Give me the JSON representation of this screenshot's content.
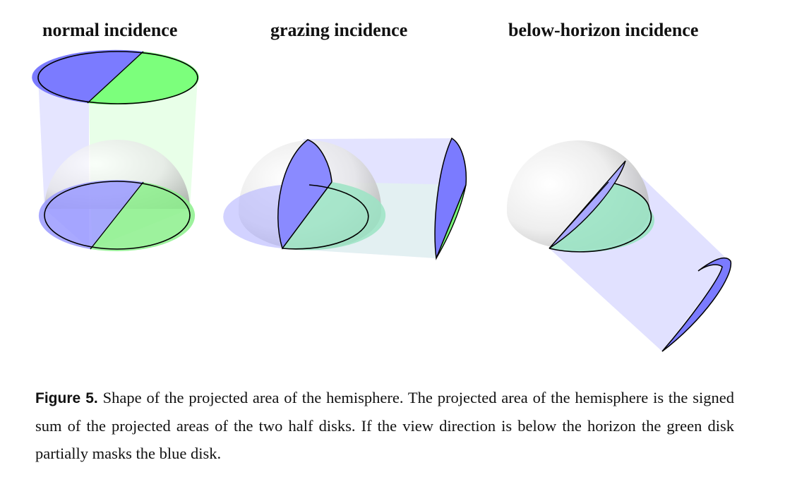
{
  "panels": {
    "normal_title": "normal incidence",
    "grazing_title": "grazing incidence",
    "below_title": "below-horizon incidence"
  },
  "caption": {
    "label": "Figure 5.",
    "text": "Shape of the projected area of the hemisphere. The projected area of the hemisphere is the signed sum of the projected areas of the two half disks. If the view direction is below the horizon the green disk partially masks the blue disk."
  },
  "colors": {
    "blue_disk": "#7b7bff",
    "green_disk": "#7cff7c",
    "blue_beam": "#dcdcff",
    "green_beam": "#e2ffe2",
    "hemisphere": "#cfcfcf"
  }
}
